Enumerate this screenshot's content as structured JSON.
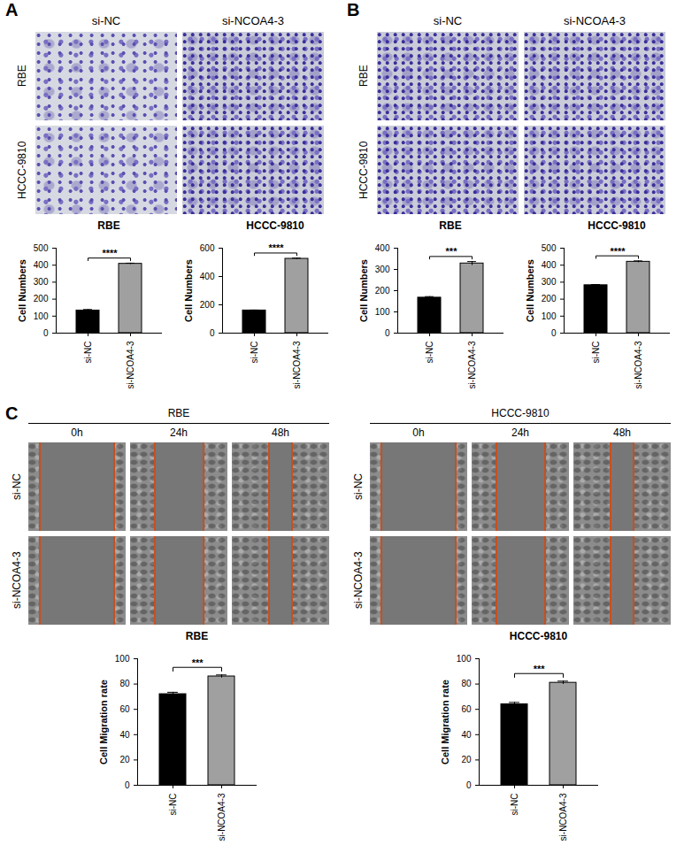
{
  "image_panels": [
    {
      "letter": "A",
      "columns": [
        "si-NC",
        "si-NCOA4-3"
      ],
      "rows": [
        "RBE",
        "HCCC-9810"
      ]
    },
    {
      "letter": "B",
      "columns": [
        "si-NC",
        "si-NCOA4-3"
      ],
      "rows": [
        "RBE",
        "HCCC-9810"
      ]
    },
    {
      "letter": "C",
      "groups": [
        {
          "title": "RBE",
          "columns": [
            "0h",
            "24h",
            "48h"
          ],
          "rows": [
            "si-NC",
            "si-NCOA4-3"
          ]
        },
        {
          "title": "HCCC-9810",
          "columns": [
            "0h",
            "24h",
            "48h"
          ],
          "rows": [
            "si-NC",
            "si-NCOA4-3"
          ]
        }
      ]
    }
  ],
  "chart_data": [
    {
      "panel": "A",
      "type": "bar",
      "title": "RBE",
      "ylabel": "Cell Numbers",
      "categories": [
        "si-NC",
        "si-NCOA4-3"
      ],
      "values": [
        133,
        408
      ],
      "errors": [
        6,
        4
      ],
      "colors": [
        "#000000",
        "#a0a0a0"
      ],
      "ylim": [
        0,
        500
      ],
      "yticks": [
        0,
        100,
        200,
        300,
        400,
        500
      ],
      "annotation": "****"
    },
    {
      "panel": "A",
      "type": "bar",
      "title": "HCCC-9810",
      "ylabel": "Cell Numbers",
      "categories": [
        "si-NC",
        "si-NCOA4-3"
      ],
      "values": [
        160,
        525
      ],
      "errors": [
        3,
        5
      ],
      "colors": [
        "#000000",
        "#a0a0a0"
      ],
      "ylim": [
        0,
        600
      ],
      "yticks": [
        0,
        200,
        400,
        600
      ],
      "annotation": "****"
    },
    {
      "panel": "B",
      "type": "bar",
      "title": "RBE",
      "ylabel": "Cell Numbers",
      "categories": [
        "si-NC",
        "si-NCOA4-3"
      ],
      "values": [
        167,
        328
      ],
      "errors": [
        5,
        9
      ],
      "colors": [
        "#000000",
        "#a0a0a0"
      ],
      "ylim": [
        0,
        400
      ],
      "yticks": [
        0,
        100,
        200,
        300,
        400
      ],
      "annotation": "***"
    },
    {
      "panel": "B",
      "type": "bar",
      "title": "HCCC-9810",
      "ylabel": "Cell Numbers",
      "categories": [
        "si-NC",
        "si-NCOA4-3"
      ],
      "values": [
        282,
        420
      ],
      "errors": [
        4,
        5
      ],
      "colors": [
        "#000000",
        "#a0a0a0"
      ],
      "ylim": [
        0,
        500
      ],
      "yticks": [
        0,
        100,
        200,
        300,
        400,
        500
      ],
      "annotation": "****"
    },
    {
      "panel": "C",
      "type": "bar",
      "title": "RBE",
      "ylabel": "Cell Migration rate",
      "categories": [
        "si-NC",
        "si-NCOA4-3"
      ],
      "values": [
        72,
        86
      ],
      "errors": [
        1.5,
        1.2
      ],
      "colors": [
        "#000000",
        "#a0a0a0"
      ],
      "ylim": [
        0,
        100
      ],
      "yticks": [
        0,
        20,
        40,
        60,
        80,
        100
      ],
      "annotation": "***"
    },
    {
      "panel": "C",
      "type": "bar",
      "title": "HCCC-9810",
      "ylabel": "Cell Migration rate",
      "categories": [
        "si-NC",
        "si-NCOA4-3"
      ],
      "values": [
        64,
        81
      ],
      "errors": [
        1.5,
        1.3
      ],
      "colors": [
        "#000000",
        "#a0a0a0"
      ],
      "ylim": [
        0,
        100
      ],
      "yticks": [
        0,
        20,
        40,
        60,
        80,
        100
      ],
      "annotation": "***"
    }
  ]
}
